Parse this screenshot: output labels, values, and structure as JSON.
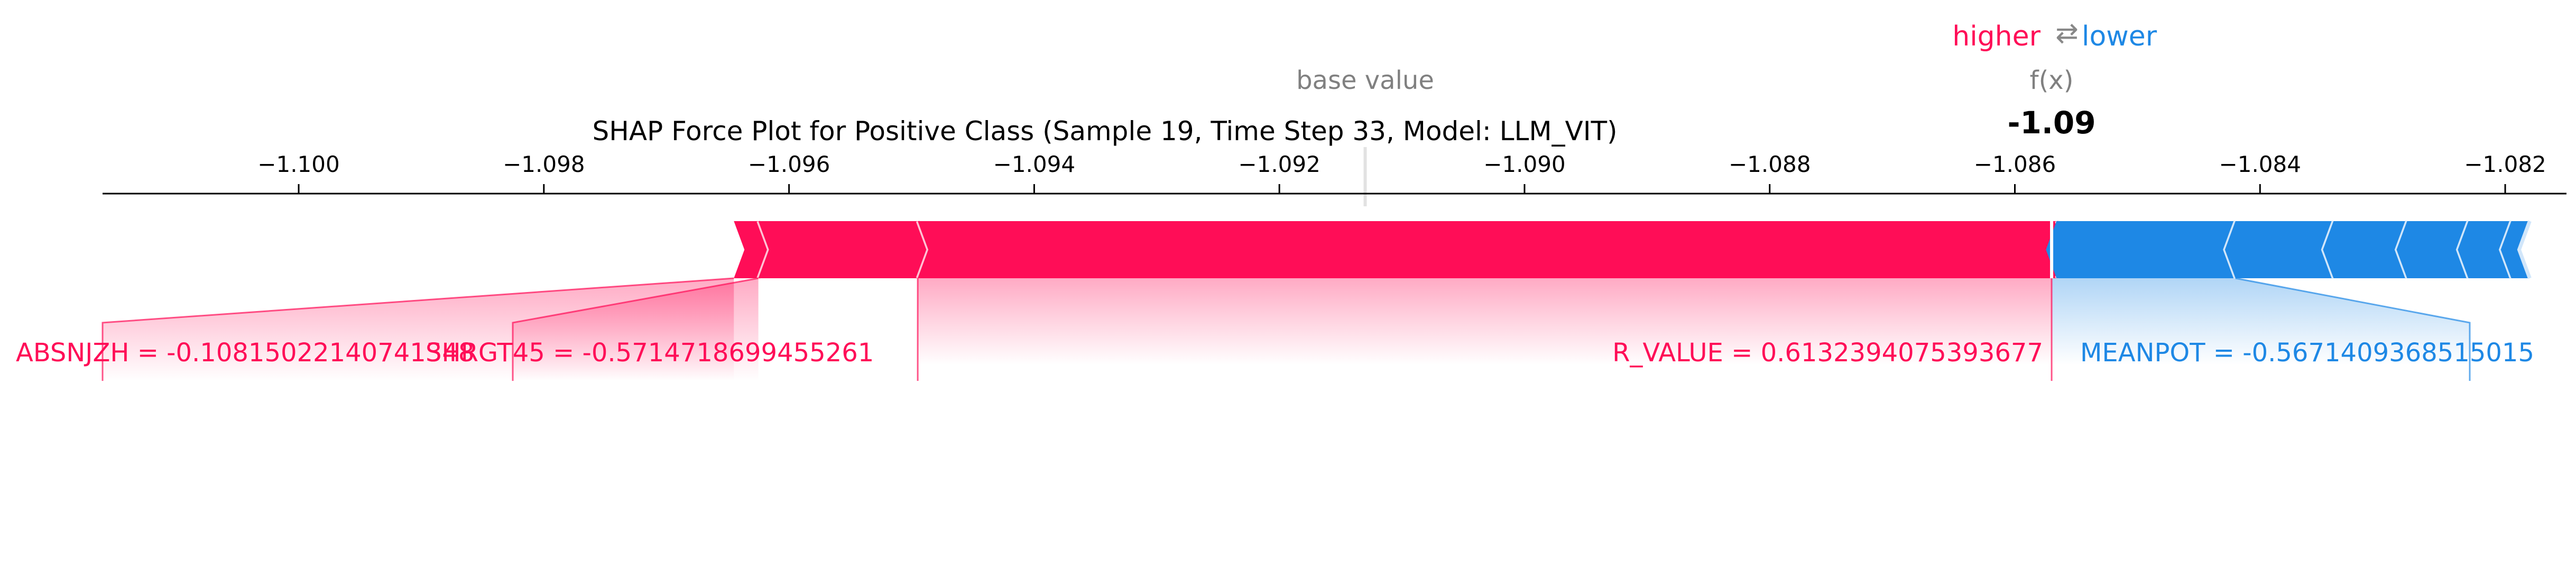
{
  "chart_data": {
    "type": "force",
    "title": "SHAP Force Plot for Positive Class (Sample 19, Time Step 33, Model: LLM_VIT)",
    "legend": {
      "higher": "higher",
      "arrows": "⇄",
      "lower": "lower"
    },
    "base_value_label": "base value",
    "fx_label": "f(x)",
    "fx_value_label": "-1.09",
    "xlim": [
      -1.1016,
      -1.0815
    ],
    "ticks": [
      -1.1,
      -1.098,
      -1.096,
      -1.094,
      -1.092,
      -1.09,
      -1.088,
      -1.086,
      -1.084,
      -1.082
    ],
    "tick_labels": [
      "−1.100",
      "−1.098",
      "−1.096",
      "−1.094",
      "−1.092",
      "−1.090",
      "−1.088",
      "−1.086",
      "−1.084",
      "−1.082"
    ],
    "base_value": -1.0913,
    "output_value": -1.0857,
    "positive_color": "#ff0d57",
    "negative_color": "#1e88e5",
    "segments": [
      {
        "direction": "higher",
        "start": -1.09645,
        "end": -1.09625
      },
      {
        "direction": "higher",
        "start": -1.09625,
        "end": -1.09495,
        "feature": "SHRGT45 = -0.5714718699455261"
      },
      {
        "direction": "higher",
        "start": -1.09495,
        "end": -1.08566,
        "feature": "R_VALUE = 0.6132394075393677"
      },
      {
        "direction": "lower",
        "start": -1.08566,
        "end": -1.0842,
        "feature": "MEANPOT = -0.5671409368515015"
      },
      {
        "direction": "lower",
        "start": -1.0842,
        "end": -1.0834
      },
      {
        "direction": "lower",
        "start": -1.0834,
        "end": -1.0828
      },
      {
        "direction": "lower",
        "start": -1.0828,
        "end": -1.0823
      },
      {
        "direction": "lower",
        "start": -1.0823,
        "end": -1.08195
      },
      {
        "direction": "lower",
        "start": -1.08195,
        "end": -1.0818
      }
    ],
    "labels": [
      {
        "text": "ABSNJZH = -0.10815022140741348",
        "direction": "higher",
        "anchor": -1.09645
      },
      {
        "text": "SHRGT45 = -0.5714718699455261",
        "direction": "higher",
        "anchor": -1.09625
      },
      {
        "text": "R_VALUE = 0.6132394075393677",
        "direction": "higher",
        "anchor": -1.09495
      },
      {
        "text": "MEANPOT = -0.5671409368515015",
        "direction": "lower",
        "anchor": -1.0842
      }
    ]
  }
}
